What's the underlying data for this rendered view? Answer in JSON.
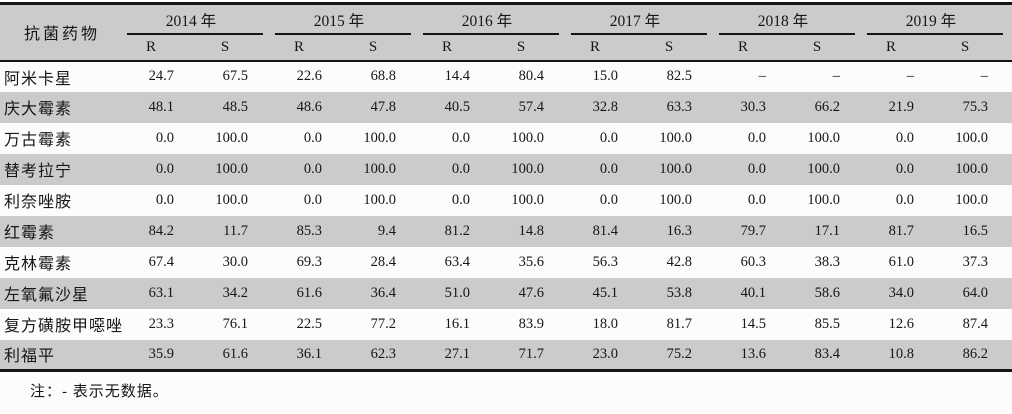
{
  "colors": {
    "header_bg": "#cbcbcb",
    "row_stripe": "#cbcbcb",
    "rule_line": "#151515",
    "text": "#161616",
    "background": "#fcfcfc"
  },
  "table": {
    "drug_column_header": "抗菌药物",
    "year_headers": [
      "2014 年",
      "2015 年",
      "2016 年",
      "2017 年",
      "2018 年",
      "2019 年"
    ],
    "rs_headers": [
      "R",
      "S"
    ],
    "no_data_marker": "–",
    "rows": [
      {
        "drug": "阿米卡星",
        "values": [
          "24.7",
          "67.5",
          "22.6",
          "68.8",
          "14.4",
          "80.4",
          "15.0",
          "82.5",
          "–",
          "–",
          "–",
          "–"
        ]
      },
      {
        "drug": "庆大霉素",
        "values": [
          "48.1",
          "48.5",
          "48.6",
          "47.8",
          "40.5",
          "57.4",
          "32.8",
          "63.3",
          "30.3",
          "66.2",
          "21.9",
          "75.3"
        ]
      },
      {
        "drug": "万古霉素",
        "values": [
          "0.0",
          "100.0",
          "0.0",
          "100.0",
          "0.0",
          "100.0",
          "0.0",
          "100.0",
          "0.0",
          "100.0",
          "0.0",
          "100.0"
        ]
      },
      {
        "drug": "替考拉宁",
        "values": [
          "0.0",
          "100.0",
          "0.0",
          "100.0",
          "0.0",
          "100.0",
          "0.0",
          "100.0",
          "0.0",
          "100.0",
          "0.0",
          "100.0"
        ]
      },
      {
        "drug": "利奈唑胺",
        "values": [
          "0.0",
          "100.0",
          "0.0",
          "100.0",
          "0.0",
          "100.0",
          "0.0",
          "100.0",
          "0.0",
          "100.0",
          "0.0",
          "100.0"
        ]
      },
      {
        "drug": "红霉素",
        "values": [
          "84.2",
          "11.7",
          "85.3",
          "9.4",
          "81.2",
          "14.8",
          "81.4",
          "16.3",
          "79.7",
          "17.1",
          "81.7",
          "16.5"
        ]
      },
      {
        "drug": "克林霉素",
        "values": [
          "67.4",
          "30.0",
          "69.3",
          "28.4",
          "63.4",
          "35.6",
          "56.3",
          "42.8",
          "60.3",
          "38.3",
          "61.0",
          "37.3"
        ]
      },
      {
        "drug": "左氧氟沙星",
        "values": [
          "63.1",
          "34.2",
          "61.6",
          "36.4",
          "51.0",
          "47.6",
          "45.1",
          "53.8",
          "40.1",
          "58.6",
          "34.0",
          "64.0"
        ]
      },
      {
        "drug": "复方磺胺甲噁唑",
        "values": [
          "23.3",
          "76.1",
          "22.5",
          "77.2",
          "16.1",
          "83.9",
          "18.0",
          "81.7",
          "14.5",
          "85.5",
          "12.6",
          "87.4"
        ]
      },
      {
        "drug": "利福平",
        "values": [
          "35.9",
          "61.6",
          "36.1",
          "62.3",
          "27.1",
          "71.7",
          "23.0",
          "75.2",
          "13.6",
          "83.4",
          "10.8",
          "86.2"
        ]
      }
    ]
  },
  "footnote": "注：- 表示无数据。"
}
